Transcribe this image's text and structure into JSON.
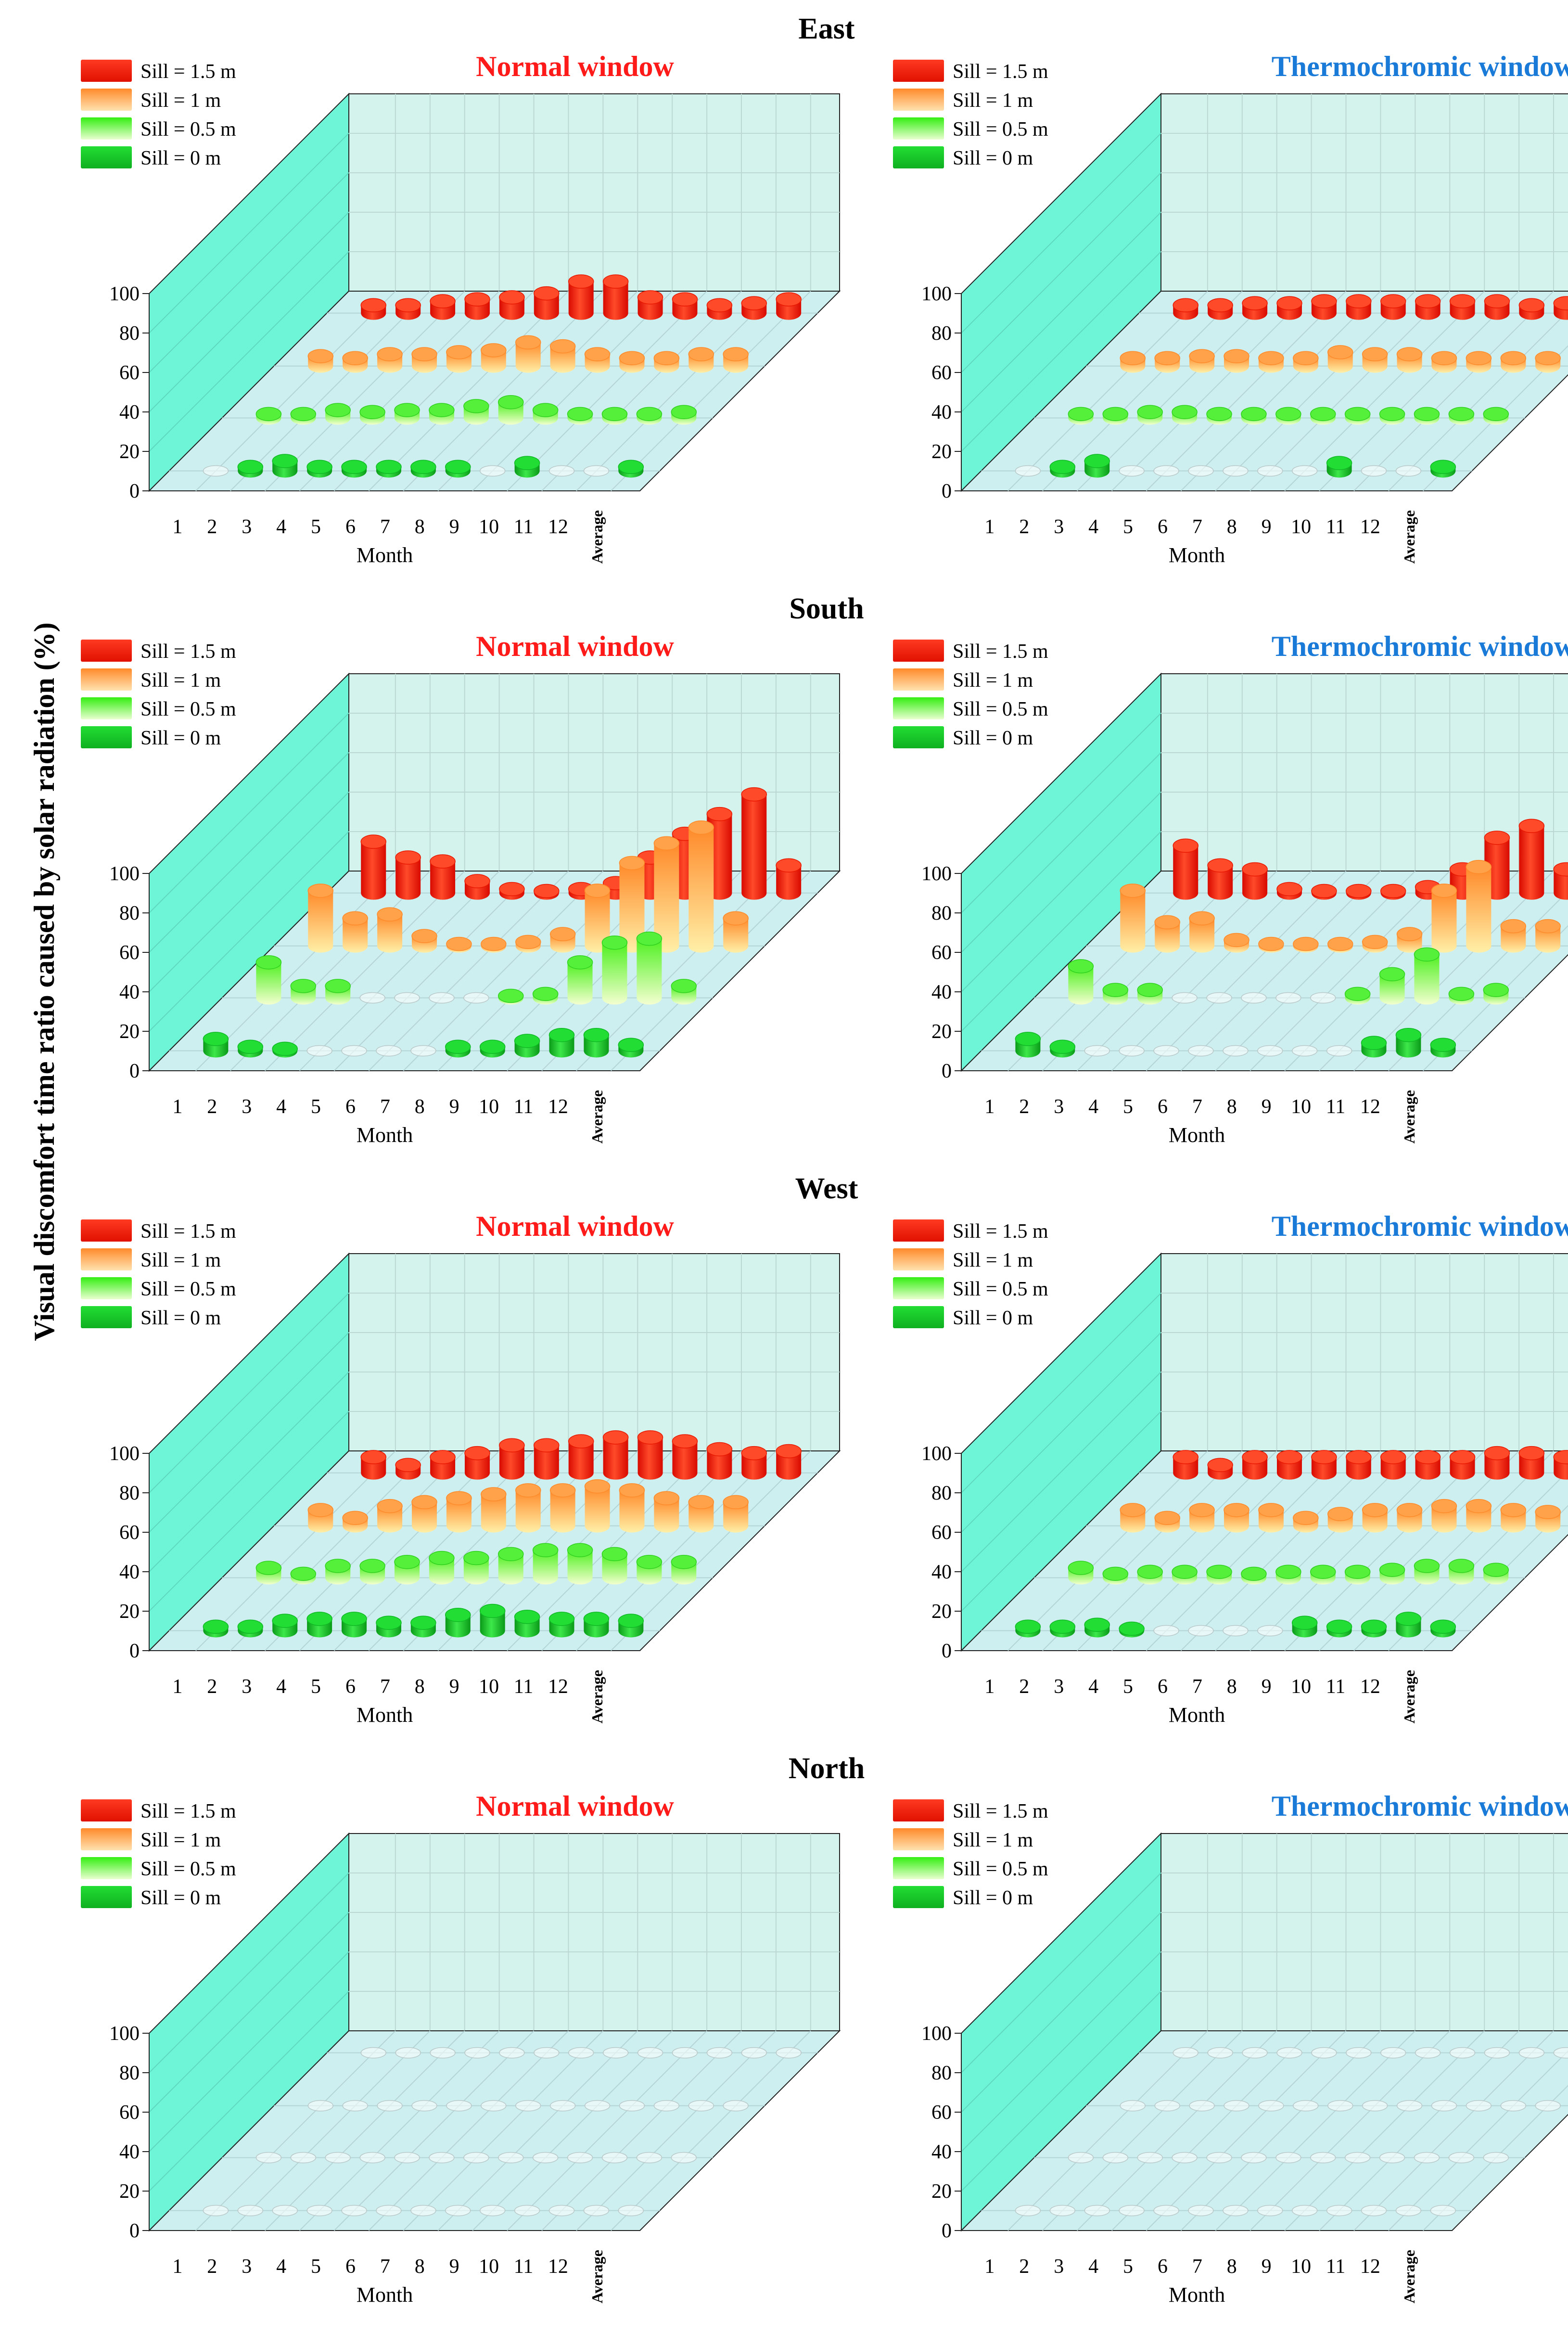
{
  "figure": {
    "ylabel": "Visual discomfort time ratio caused by solar radiation (%)",
    "xlabel": "Month",
    "legend": [
      {
        "key": "s15",
        "label": "Sill = 1.5 m",
        "color": "#ff2a1a"
      },
      {
        "key": "s1",
        "label": "Sill = 1 m",
        "color": "#ff9a3a"
      },
      {
        "key": "s05",
        "label": "Sill = 0.5 m",
        "color": "#44ee22"
      },
      {
        "key": "s0",
        "label": "Sill = 0 m",
        "color": "#11cc22"
      }
    ],
    "panel_titles": {
      "normal": {
        "text": "Normal window",
        "color": "#ff1a1a"
      },
      "thermo": {
        "text": "Thermochromic window",
        "color": "#1a7ad8"
      }
    }
  },
  "chart_data": {
    "type": "bar",
    "style": "3d-cylinders",
    "categories": [
      "1",
      "2",
      "3",
      "4",
      "5",
      "6",
      "7",
      "8",
      "9",
      "10",
      "11",
      "12",
      "Average"
    ],
    "yticks": [
      "0",
      "20",
      "40",
      "60",
      "80",
      "100"
    ],
    "ylim": [
      0,
      100
    ],
    "series_names": [
      "Sill = 0 m",
      "Sill = 0.5 m",
      "Sill = 1 m",
      "Sill = 1.5 m"
    ],
    "panels": [
      {
        "direction": "East",
        "window": "Normal window",
        "series": [
          {
            "name": "Sill = 0 m",
            "values": [
              0,
              2,
              5,
              2,
              2,
              2,
              2,
              2,
              0,
              4,
              0,
              0,
              2
            ]
          },
          {
            "name": "Sill = 0.5 m",
            "values": [
              2,
              2,
              4,
              3,
              4,
              4,
              6,
              8,
              4,
              2,
              2,
              2,
              3
            ]
          },
          {
            "name": "Sill = 1 m",
            "values": [
              5,
              4,
              6,
              6,
              7,
              8,
              12,
              10,
              6,
              4,
              4,
              6,
              6
            ]
          },
          {
            "name": "Sill = 1.5 m",
            "values": [
              4,
              4,
              6,
              7,
              8,
              10,
              16,
              16,
              8,
              7,
              4,
              5,
              7
            ]
          }
        ]
      },
      {
        "direction": "East",
        "window": "Thermochromic window",
        "series": [
          {
            "name": "Sill = 0 m",
            "values": [
              0,
              2,
              5,
              0,
              0,
              0,
              0,
              0,
              0,
              4,
              0,
              0,
              2
            ]
          },
          {
            "name": "Sill = 0.5 m",
            "values": [
              2,
              2,
              3,
              3,
              2,
              2,
              2,
              2,
              2,
              2,
              2,
              2,
              2
            ]
          },
          {
            "name": "Sill = 1 m",
            "values": [
              4,
              4,
              5,
              5,
              4,
              4,
              7,
              6,
              6,
              4,
              4,
              4,
              4
            ]
          },
          {
            "name": "Sill = 1.5 m",
            "values": [
              4,
              4,
              5,
              5,
              6,
              6,
              6,
              6,
              6,
              6,
              4,
              5,
              5
            ]
          }
        ]
      },
      {
        "direction": "South",
        "window": "Normal window",
        "series": [
          {
            "name": "Sill = 0 m",
            "values": [
              6,
              2,
              1,
              0,
              0,
              0,
              0,
              2,
              2,
              5,
              8,
              8,
              3
            ]
          },
          {
            "name": "Sill = 0.5 m",
            "values": [
              18,
              6,
              6,
              0,
              0,
              0,
              0,
              1,
              2,
              18,
              28,
              30,
              6
            ]
          },
          {
            "name": "Sill = 1 m",
            "values": [
              28,
              14,
              16,
              5,
              1,
              1,
              2,
              6,
              28,
              42,
              52,
              60,
              14
            ]
          },
          {
            "name": "Sill = 1.5 m",
            "values": [
              26,
              18,
              16,
              6,
              2,
              1,
              2,
              5,
              18,
              30,
              40,
              50,
              14
            ]
          }
        ]
      },
      {
        "direction": "South",
        "window": "Thermochromic window",
        "series": [
          {
            "name": "Sill = 0 m",
            "values": [
              6,
              2,
              0,
              0,
              0,
              0,
              0,
              0,
              0,
              0,
              4,
              8,
              3
            ]
          },
          {
            "name": "Sill = 0.5 m",
            "values": [
              16,
              4,
              4,
              0,
              0,
              0,
              0,
              0,
              2,
              12,
              22,
              2,
              4
            ]
          },
          {
            "name": "Sill = 1 m",
            "values": [
              28,
              12,
              14,
              3,
              1,
              1,
              1,
              2,
              6,
              28,
              40,
              10,
              10
            ]
          },
          {
            "name": "Sill = 1.5 m",
            "values": [
              24,
              14,
              12,
              2,
              1,
              1,
              1,
              3,
              12,
              28,
              34,
              12,
              10
            ]
          }
        ]
      },
      {
        "direction": "West",
        "window": "Normal window",
        "series": [
          {
            "name": "Sill = 0 m",
            "values": [
              2,
              2,
              5,
              6,
              6,
              4,
              4,
              8,
              10,
              7,
              6,
              6,
              5
            ]
          },
          {
            "name": "Sill = 0.5 m",
            "values": [
              5,
              2,
              6,
              6,
              8,
              10,
              10,
              12,
              14,
              14,
              12,
              8,
              8
            ]
          },
          {
            "name": "Sill = 1 m",
            "values": [
              8,
              4,
              10,
              12,
              14,
              16,
              18,
              18,
              20,
              18,
              14,
              12,
              12
            ]
          },
          {
            "name": "Sill = 1.5 m",
            "values": [
              8,
              4,
              8,
              10,
              14,
              14,
              16,
              18,
              18,
              16,
              12,
              10,
              11
            ]
          }
        ]
      },
      {
        "direction": "West",
        "window": "Thermochromic window",
        "series": [
          {
            "name": "Sill = 0 m",
            "values": [
              2,
              2,
              3,
              1,
              0,
              0,
              0,
              0,
              4,
              2,
              2,
              6,
              2
            ]
          },
          {
            "name": "Sill = 0.5 m",
            "values": [
              5,
              2,
              3,
              3,
              3,
              2,
              3,
              3,
              3,
              4,
              6,
              6,
              4
            ]
          },
          {
            "name": "Sill = 1 m",
            "values": [
              8,
              4,
              8,
              8,
              8,
              4,
              6,
              8,
              8,
              10,
              10,
              8,
              7
            ]
          },
          {
            "name": "Sill = 1.5 m",
            "values": [
              8,
              4,
              8,
              8,
              8,
              8,
              8,
              8,
              8,
              10,
              10,
              8,
              8
            ]
          }
        ]
      },
      {
        "direction": "North",
        "window": "Normal window",
        "series": [
          {
            "name": "Sill = 0 m",
            "values": [
              0,
              0,
              0,
              0,
              0,
              0,
              0,
              0,
              0,
              0,
              0,
              0,
              0
            ]
          },
          {
            "name": "Sill = 0.5 m",
            "values": [
              0,
              0,
              0,
              0,
              0,
              0,
              0,
              0,
              0,
              0,
              0,
              0,
              0
            ]
          },
          {
            "name": "Sill = 1 m",
            "values": [
              0,
              0,
              0,
              0,
              0,
              0,
              0,
              0,
              0,
              0,
              0,
              0,
              0
            ]
          },
          {
            "name": "Sill = 1.5 m",
            "values": [
              0,
              0,
              0,
              0,
              0,
              0,
              0,
              0,
              0,
              0,
              0,
              0,
              0
            ]
          }
        ]
      },
      {
        "direction": "North",
        "window": "Thermochromic window",
        "series": [
          {
            "name": "Sill = 0 m",
            "values": [
              0,
              0,
              0,
              0,
              0,
              0,
              0,
              0,
              0,
              0,
              0,
              0,
              0
            ]
          },
          {
            "name": "Sill = 0.5 m",
            "values": [
              0,
              0,
              0,
              0,
              0,
              0,
              0,
              0,
              0,
              0,
              0,
              0,
              0
            ]
          },
          {
            "name": "Sill = 1 m",
            "values": [
              0,
              0,
              0,
              0,
              0,
              0,
              0,
              0,
              0,
              0,
              0,
              0,
              0
            ]
          },
          {
            "name": "Sill = 1.5 m",
            "values": [
              0,
              0,
              0,
              0,
              0,
              0,
              0,
              0,
              0,
              0,
              0,
              0,
              0
            ]
          }
        ]
      }
    ]
  }
}
